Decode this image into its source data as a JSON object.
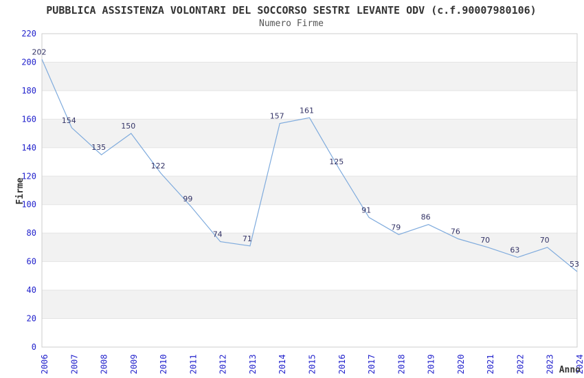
{
  "chart_data": {
    "type": "line",
    "title": "PUBBLICA ASSISTENZA VOLONTARI DEL SOCCORSO SESTRI LEVANTE ODV (c.f.90007980106)",
    "subtitle": "Numero Firme",
    "xlabel": "Anno",
    "ylabel": "Firme",
    "categories": [
      "2006",
      "2007",
      "2008",
      "2009",
      "2010",
      "2011",
      "2012",
      "2013",
      "2014",
      "2015",
      "2016",
      "2017",
      "2018",
      "2019",
      "2020",
      "2021",
      "2022",
      "2023",
      "2024"
    ],
    "values": [
      202,
      154,
      135,
      150,
      122,
      99,
      74,
      71,
      157,
      161,
      125,
      91,
      79,
      86,
      76,
      70,
      63,
      70,
      53
    ],
    "ylim": [
      0,
      220
    ],
    "ytick_step": 20,
    "grid": "alternating-horizontal-bands",
    "legend_position": "none",
    "colors": {
      "line": "#7fabdd",
      "tick_label": "#2222cc",
      "data_label": "#333366",
      "band": "#f2f2f2",
      "grid_line": "#e4e4e4",
      "plot_border": "#cccccc",
      "title": "#333333",
      "subtitle": "#555555",
      "axis_label": "#333333",
      "background": "#ffffff"
    }
  }
}
